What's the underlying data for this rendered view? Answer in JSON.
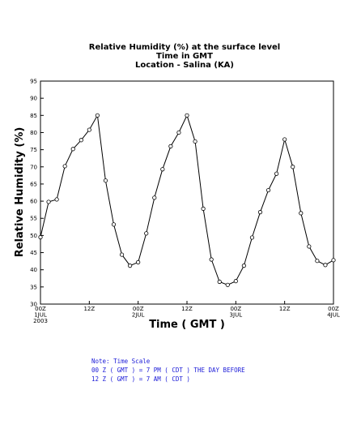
{
  "chart_data": {
    "type": "line",
    "title": [
      "Relative Humidity (%) at the surface level",
      "Time in GMT",
      "Location - Salina (KA)"
    ],
    "xlabel": "Time ( GMT )",
    "ylabel": "Relative Humidity (%)",
    "ylim": [
      30,
      95
    ],
    "yticks": [
      30,
      35,
      40,
      45,
      50,
      55,
      60,
      65,
      70,
      75,
      80,
      85,
      90,
      95
    ],
    "xlim_hours": [
      0,
      72
    ],
    "xticks": [
      {
        "hour": 0,
        "lines": [
          "00Z",
          "1JUL",
          "2003"
        ]
      },
      {
        "hour": 12,
        "lines": [
          "12Z"
        ]
      },
      {
        "hour": 24,
        "lines": [
          "00Z",
          "2JUL"
        ]
      },
      {
        "hour": 36,
        "lines": [
          "12Z"
        ]
      },
      {
        "hour": 48,
        "lines": [
          "00Z",
          "3JUL"
        ]
      },
      {
        "hour": 60,
        "lines": [
          "12Z"
        ]
      },
      {
        "hour": 72,
        "lines": [
          "00Z",
          "4JUL"
        ]
      }
    ],
    "grid": false,
    "series": [
      {
        "x_hours": [
          0,
          2,
          4,
          6,
          8,
          10,
          12,
          14,
          16,
          18,
          20,
          22,
          24,
          26,
          28,
          30,
          32,
          34,
          36,
          38,
          40,
          42,
          44,
          46,
          48,
          50,
          52,
          54,
          56,
          58,
          60,
          62,
          64,
          66,
          68,
          70,
          72
        ],
        "values": [
          49.5,
          59.8,
          60.5,
          70.2,
          75.2,
          77.8,
          80.8,
          85.0,
          66.0,
          53.2,
          44.4,
          41.2,
          42.2,
          50.6,
          61.0,
          69.3,
          76.0,
          80.0,
          85.0,
          77.4,
          57.8,
          43.0,
          36.5,
          35.6,
          36.7,
          41.2,
          49.4,
          56.8,
          63.2,
          68.0,
          78.0,
          70.0,
          56.5,
          46.8,
          42.6,
          41.4,
          42.8
        ]
      }
    ]
  },
  "note": {
    "lines": [
      "Note: Time Scale",
      "00 Z ( GMT ) = 7 PM ( CDT ) THE DAY BEFORE",
      "12 Z ( GMT ) = 7 AM ( CDT )"
    ]
  }
}
